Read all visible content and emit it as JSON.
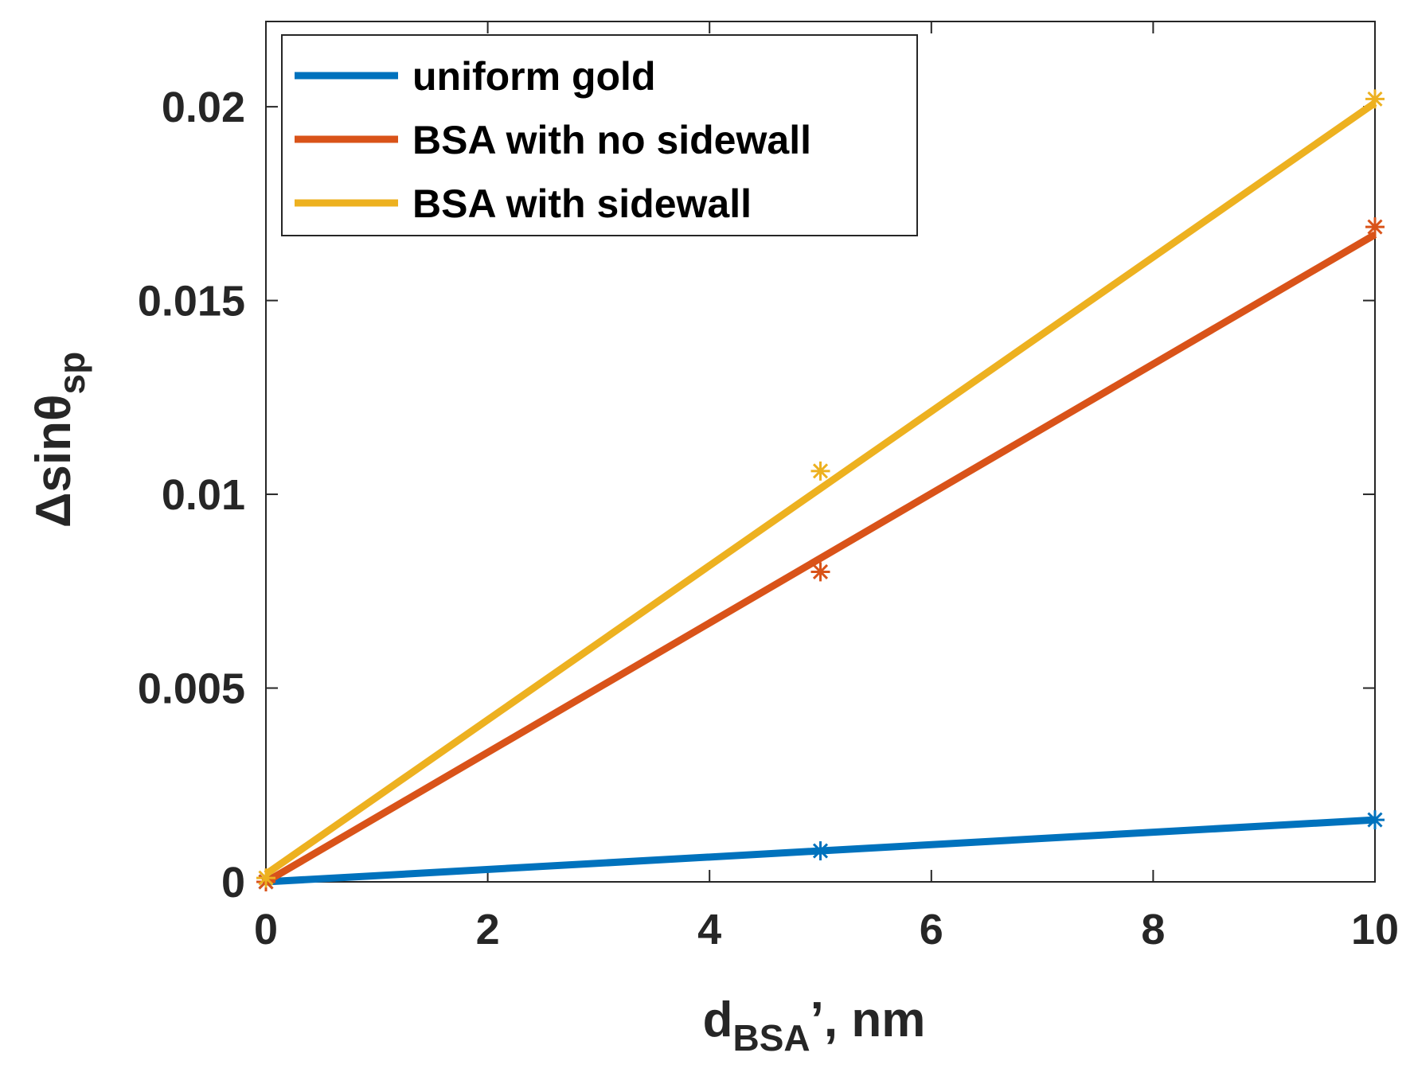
{
  "chart_data": {
    "type": "line",
    "x": [
      0,
      5,
      10
    ],
    "series": [
      {
        "name": "uniform gold",
        "color": "#0072BD",
        "values": [
          0,
          0.0008,
          0.0016
        ]
      },
      {
        "name": "BSA with no sidewall",
        "color": "#D95319",
        "values": [
          0,
          0.008,
          0.0169
        ]
      },
      {
        "name": "BSA with sidewall",
        "color": "#EDB120",
        "values": [
          0.0001,
          0.0106,
          0.0202
        ]
      }
    ],
    "fit_lines": [
      {
        "series": "uniform gold",
        "start": [
          0,
          0
        ],
        "end": [
          10,
          0.0016
        ]
      },
      {
        "series": "BSA with no sidewall",
        "start": [
          0,
          0
        ],
        "end": [
          10,
          0.0167
        ]
      },
      {
        "series": "BSA with sidewall",
        "start": [
          0,
          0.0002
        ],
        "end": [
          10,
          0.0201
        ]
      }
    ],
    "marker": "asterisk",
    "xlabel": {
      "main": "d",
      "sub": "BSA",
      "suffix": "’, nm"
    },
    "ylabel": {
      "main": "Δsinθ",
      "sub": "sp"
    },
    "xlim": [
      0,
      10
    ],
    "ylim": [
      0,
      0.0222
    ],
    "xticks": [
      0,
      2,
      4,
      6,
      8,
      10
    ],
    "xtick_labels": [
      "0",
      "2",
      "4",
      "6",
      "8",
      "10"
    ],
    "yticks": [
      0,
      0.005,
      0.01,
      0.015,
      0.02
    ],
    "ytick_labels": [
      "0",
      "0.005",
      "0.01",
      "0.015",
      "0.02"
    ],
    "legend_position": "top-left",
    "grid": false
  }
}
